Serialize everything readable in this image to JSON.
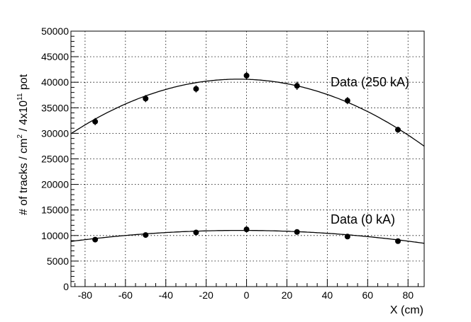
{
  "chart_data": {
    "type": "scatter",
    "xlabel": "X (cm)",
    "ylabel": {
      "main": "# of tracks / cm",
      "sup1": "2",
      "mid": " / 4x10",
      "sup2": "11",
      "end": " pot"
    },
    "xlim": [
      -87,
      88
    ],
    "ylim": [
      0,
      50000
    ],
    "x_ticks": [
      -80,
      -60,
      -40,
      -20,
      0,
      20,
      40,
      60,
      80
    ],
    "y_ticks": [
      0,
      5000,
      10000,
      15000,
      20000,
      25000,
      30000,
      35000,
      40000,
      45000,
      50000
    ],
    "grid": true,
    "series": [
      {
        "name": "Data (250 kA)",
        "x": [
          -75,
          -50,
          -25,
          0,
          25,
          50,
          75
        ],
        "y": [
          32300,
          36800,
          38700,
          41300,
          39300,
          36400,
          30700
        ],
        "yerr": [
          700,
          700,
          700,
          800,
          800,
          700,
          600
        ],
        "fit": {
          "type": "quadratic",
          "peak_x": -4,
          "peak_y": 40600,
          "curvature": 1.55
        }
      },
      {
        "name": "Data (0 kA)",
        "x": [
          -75,
          -50,
          -25,
          0,
          25,
          50,
          75
        ],
        "y": [
          9200,
          10100,
          10600,
          11200,
          10700,
          9800,
          8900
        ],
        "yerr": [
          250,
          250,
          250,
          300,
          250,
          250,
          250
        ],
        "fit": {
          "type": "quadratic",
          "peak_x": -3,
          "peak_y": 11000,
          "curvature": 0.305
        }
      }
    ]
  }
}
